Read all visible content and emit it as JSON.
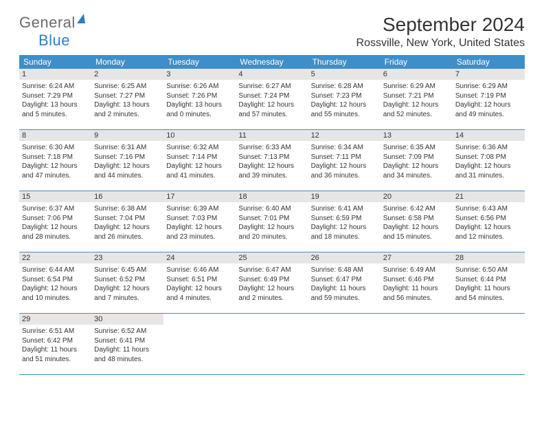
{
  "brand": {
    "general": "General",
    "blue": "Blue"
  },
  "title": "September 2024",
  "location": "Rossville, New York, United States",
  "weekdays": [
    "Sunday",
    "Monday",
    "Tuesday",
    "Wednesday",
    "Thursday",
    "Friday",
    "Saturday"
  ],
  "colors": {
    "header_bar": "#3d8fc9",
    "daynum_bg": "#e6e6e6",
    "text": "#333333",
    "brand_gray": "#6b6b6b",
    "brand_blue": "#2e7ec4"
  },
  "layout": {
    "cols": 7,
    "rows": 5
  },
  "days": [
    {
      "n": "1",
      "sr": "6:24 AM",
      "ss": "7:29 PM",
      "dl": "13 hours and 5 minutes."
    },
    {
      "n": "2",
      "sr": "6:25 AM",
      "ss": "7:27 PM",
      "dl": "13 hours and 2 minutes."
    },
    {
      "n": "3",
      "sr": "6:26 AM",
      "ss": "7:26 PM",
      "dl": "13 hours and 0 minutes."
    },
    {
      "n": "4",
      "sr": "6:27 AM",
      "ss": "7:24 PM",
      "dl": "12 hours and 57 minutes."
    },
    {
      "n": "5",
      "sr": "6:28 AM",
      "ss": "7:23 PM",
      "dl": "12 hours and 55 minutes."
    },
    {
      "n": "6",
      "sr": "6:29 AM",
      "ss": "7:21 PM",
      "dl": "12 hours and 52 minutes."
    },
    {
      "n": "7",
      "sr": "6:29 AM",
      "ss": "7:19 PM",
      "dl": "12 hours and 49 minutes."
    },
    {
      "n": "8",
      "sr": "6:30 AM",
      "ss": "7:18 PM",
      "dl": "12 hours and 47 minutes."
    },
    {
      "n": "9",
      "sr": "6:31 AM",
      "ss": "7:16 PM",
      "dl": "12 hours and 44 minutes."
    },
    {
      "n": "10",
      "sr": "6:32 AM",
      "ss": "7:14 PM",
      "dl": "12 hours and 41 minutes."
    },
    {
      "n": "11",
      "sr": "6:33 AM",
      "ss": "7:13 PM",
      "dl": "12 hours and 39 minutes."
    },
    {
      "n": "12",
      "sr": "6:34 AM",
      "ss": "7:11 PM",
      "dl": "12 hours and 36 minutes."
    },
    {
      "n": "13",
      "sr": "6:35 AM",
      "ss": "7:09 PM",
      "dl": "12 hours and 34 minutes."
    },
    {
      "n": "14",
      "sr": "6:36 AM",
      "ss": "7:08 PM",
      "dl": "12 hours and 31 minutes."
    },
    {
      "n": "15",
      "sr": "6:37 AM",
      "ss": "7:06 PM",
      "dl": "12 hours and 28 minutes."
    },
    {
      "n": "16",
      "sr": "6:38 AM",
      "ss": "7:04 PM",
      "dl": "12 hours and 26 minutes."
    },
    {
      "n": "17",
      "sr": "6:39 AM",
      "ss": "7:03 PM",
      "dl": "12 hours and 23 minutes."
    },
    {
      "n": "18",
      "sr": "6:40 AM",
      "ss": "7:01 PM",
      "dl": "12 hours and 20 minutes."
    },
    {
      "n": "19",
      "sr": "6:41 AM",
      "ss": "6:59 PM",
      "dl": "12 hours and 18 minutes."
    },
    {
      "n": "20",
      "sr": "6:42 AM",
      "ss": "6:58 PM",
      "dl": "12 hours and 15 minutes."
    },
    {
      "n": "21",
      "sr": "6:43 AM",
      "ss": "6:56 PM",
      "dl": "12 hours and 12 minutes."
    },
    {
      "n": "22",
      "sr": "6:44 AM",
      "ss": "6:54 PM",
      "dl": "12 hours and 10 minutes."
    },
    {
      "n": "23",
      "sr": "6:45 AM",
      "ss": "6:52 PM",
      "dl": "12 hours and 7 minutes."
    },
    {
      "n": "24",
      "sr": "6:46 AM",
      "ss": "6:51 PM",
      "dl": "12 hours and 4 minutes."
    },
    {
      "n": "25",
      "sr": "6:47 AM",
      "ss": "6:49 PM",
      "dl": "12 hours and 2 minutes."
    },
    {
      "n": "26",
      "sr": "6:48 AM",
      "ss": "6:47 PM",
      "dl": "11 hours and 59 minutes."
    },
    {
      "n": "27",
      "sr": "6:49 AM",
      "ss": "6:46 PM",
      "dl": "11 hours and 56 minutes."
    },
    {
      "n": "28",
      "sr": "6:50 AM",
      "ss": "6:44 PM",
      "dl": "11 hours and 54 minutes."
    },
    {
      "n": "29",
      "sr": "6:51 AM",
      "ss": "6:42 PM",
      "dl": "11 hours and 51 minutes."
    },
    {
      "n": "30",
      "sr": "6:52 AM",
      "ss": "6:41 PM",
      "dl": "11 hours and 48 minutes."
    }
  ],
  "labels": {
    "sunrise": "Sunrise: ",
    "sunset": "Sunset: ",
    "daylight": "Daylight: "
  }
}
